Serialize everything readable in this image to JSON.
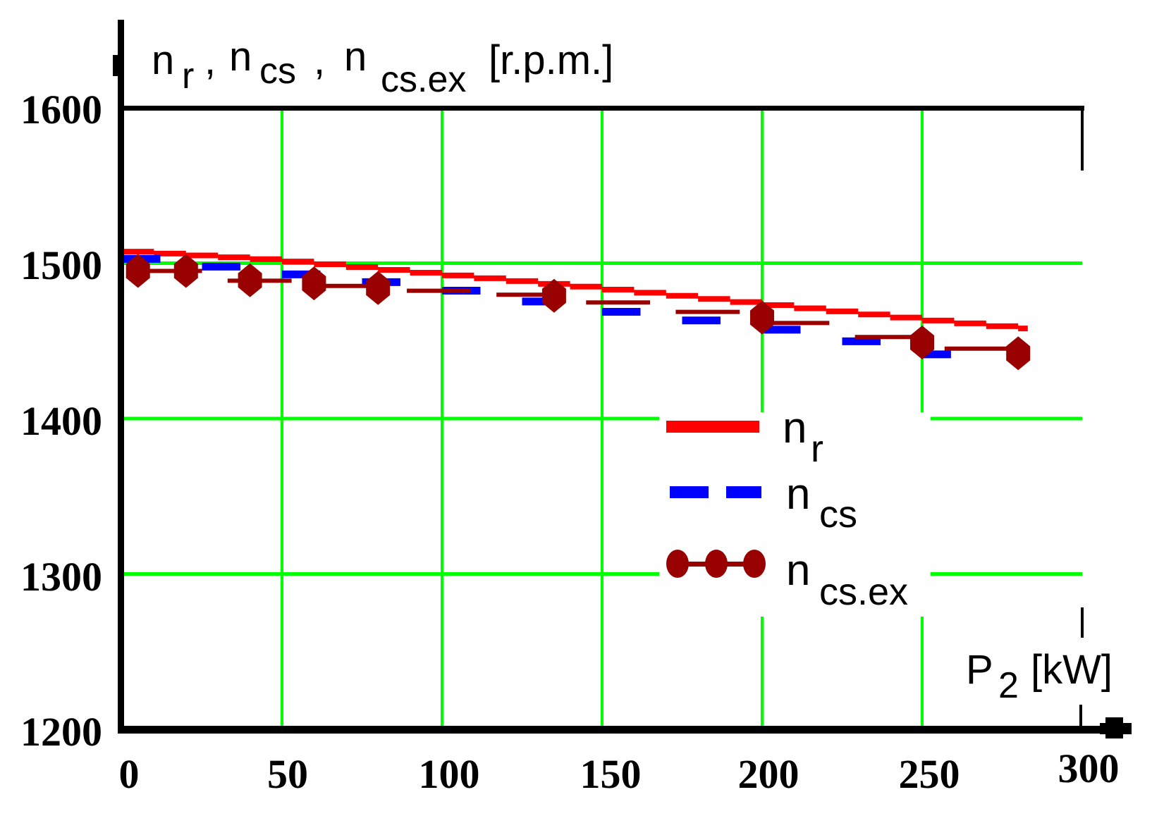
{
  "chart_data": {
    "type": "line",
    "title": "",
    "ylabel": "n_r , n_cs , n_cs.ex [r.p.m.]",
    "xlabel": "P_2 [kW]",
    "xlim": [
      0,
      300
    ],
    "ylim": [
      1200,
      1600
    ],
    "x_ticks": [
      0,
      50,
      100,
      150,
      200,
      250,
      300
    ],
    "y_ticks": [
      1200,
      1300,
      1400,
      1500,
      1600
    ],
    "grid": true,
    "grid_color": "#00ff00",
    "legend_position": "center-right, inside plot",
    "series": [
      {
        "name": "n_r",
        "style": "solid",
        "color": "#ff0000",
        "x": [
          0,
          50,
          100,
          150,
          200,
          250,
          283
        ],
        "values": [
          1508,
          1502,
          1493,
          1484,
          1474,
          1464,
          1458
        ]
      },
      {
        "name": "n_cs",
        "style": "dashed",
        "color": "#0000ff",
        "x": [
          0,
          50,
          100,
          150,
          200,
          250,
          259
        ],
        "values": [
          1504,
          1494,
          1484,
          1470,
          1459,
          1444,
          1440
        ]
      },
      {
        "name": "n_cs.ex",
        "style": "dash-with-diamond-markers",
        "color": "#990000",
        "x": [
          5,
          20,
          40,
          60,
          80,
          135,
          200,
          250,
          280
        ],
        "values": [
          1495,
          1495,
          1489,
          1487,
          1484,
          1479,
          1465,
          1449,
          1442
        ]
      }
    ]
  },
  "axes": {
    "y_title": {
      "main": "n",
      "sub_r": "r",
      "sep1": ",",
      "n2": "n",
      "sub_cs": "cs",
      "sep2": ",",
      "n3": "n",
      "sub_csex": "cs.ex",
      "unit": "[r.p.m.]"
    },
    "x_title": {
      "main": "P",
      "sub": "2",
      "unit": "[kW]"
    },
    "y_tick_labels": [
      "1600",
      "1500",
      "1400",
      "1300",
      "1200"
    ],
    "x_tick_labels": [
      "0",
      "50",
      "100",
      "150",
      "200",
      "250",
      "300"
    ]
  },
  "legend": {
    "items": [
      {
        "symbol": "n",
        "sub": "r",
        "color": "#ff0000"
      },
      {
        "symbol": "n",
        "sub": "cs",
        "color": "#0000ff"
      },
      {
        "symbol": "n",
        "sub": "cs.ex",
        "color": "#990000"
      }
    ]
  }
}
